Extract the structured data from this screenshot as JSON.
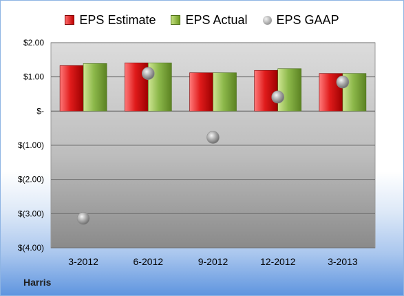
{
  "chart_data": {
    "type": "bar",
    "categories": [
      "3-2012",
      "6-2012",
      "9-2012",
      "12-2012",
      "3-2013"
    ],
    "series": [
      {
        "name": "EPS Estimate",
        "values": [
          1.33,
          1.41,
          1.12,
          1.19,
          1.1
        ],
        "color": "#c00000"
      },
      {
        "name": "EPS Actual",
        "values": [
          1.39,
          1.41,
          1.12,
          1.24,
          1.1
        ],
        "color": "#76a33a"
      },
      {
        "name": "EPS GAAP",
        "values": [
          -3.14,
          1.1,
          -0.77,
          0.41,
          0.85
        ],
        "color": "#a6a6a6",
        "kind": "scatter"
      }
    ],
    "ylim": [
      -4,
      2
    ],
    "ytick_values": [
      2,
      1,
      0,
      -1,
      -2,
      -3,
      -4
    ],
    "ytick_labels": [
      "$2.00",
      "$1.00",
      "$-",
      "$(1.00)",
      "$(2.00)",
      "$(3.00)",
      "$(4.00)"
    ],
    "grid": true,
    "legend_position": "top",
    "title": "",
    "xlabel": "",
    "ylabel": ""
  },
  "legend": {
    "estimate": "EPS Estimate",
    "actual": "EPS Actual",
    "gaap": "EPS GAAP"
  },
  "company_label": "Harris"
}
